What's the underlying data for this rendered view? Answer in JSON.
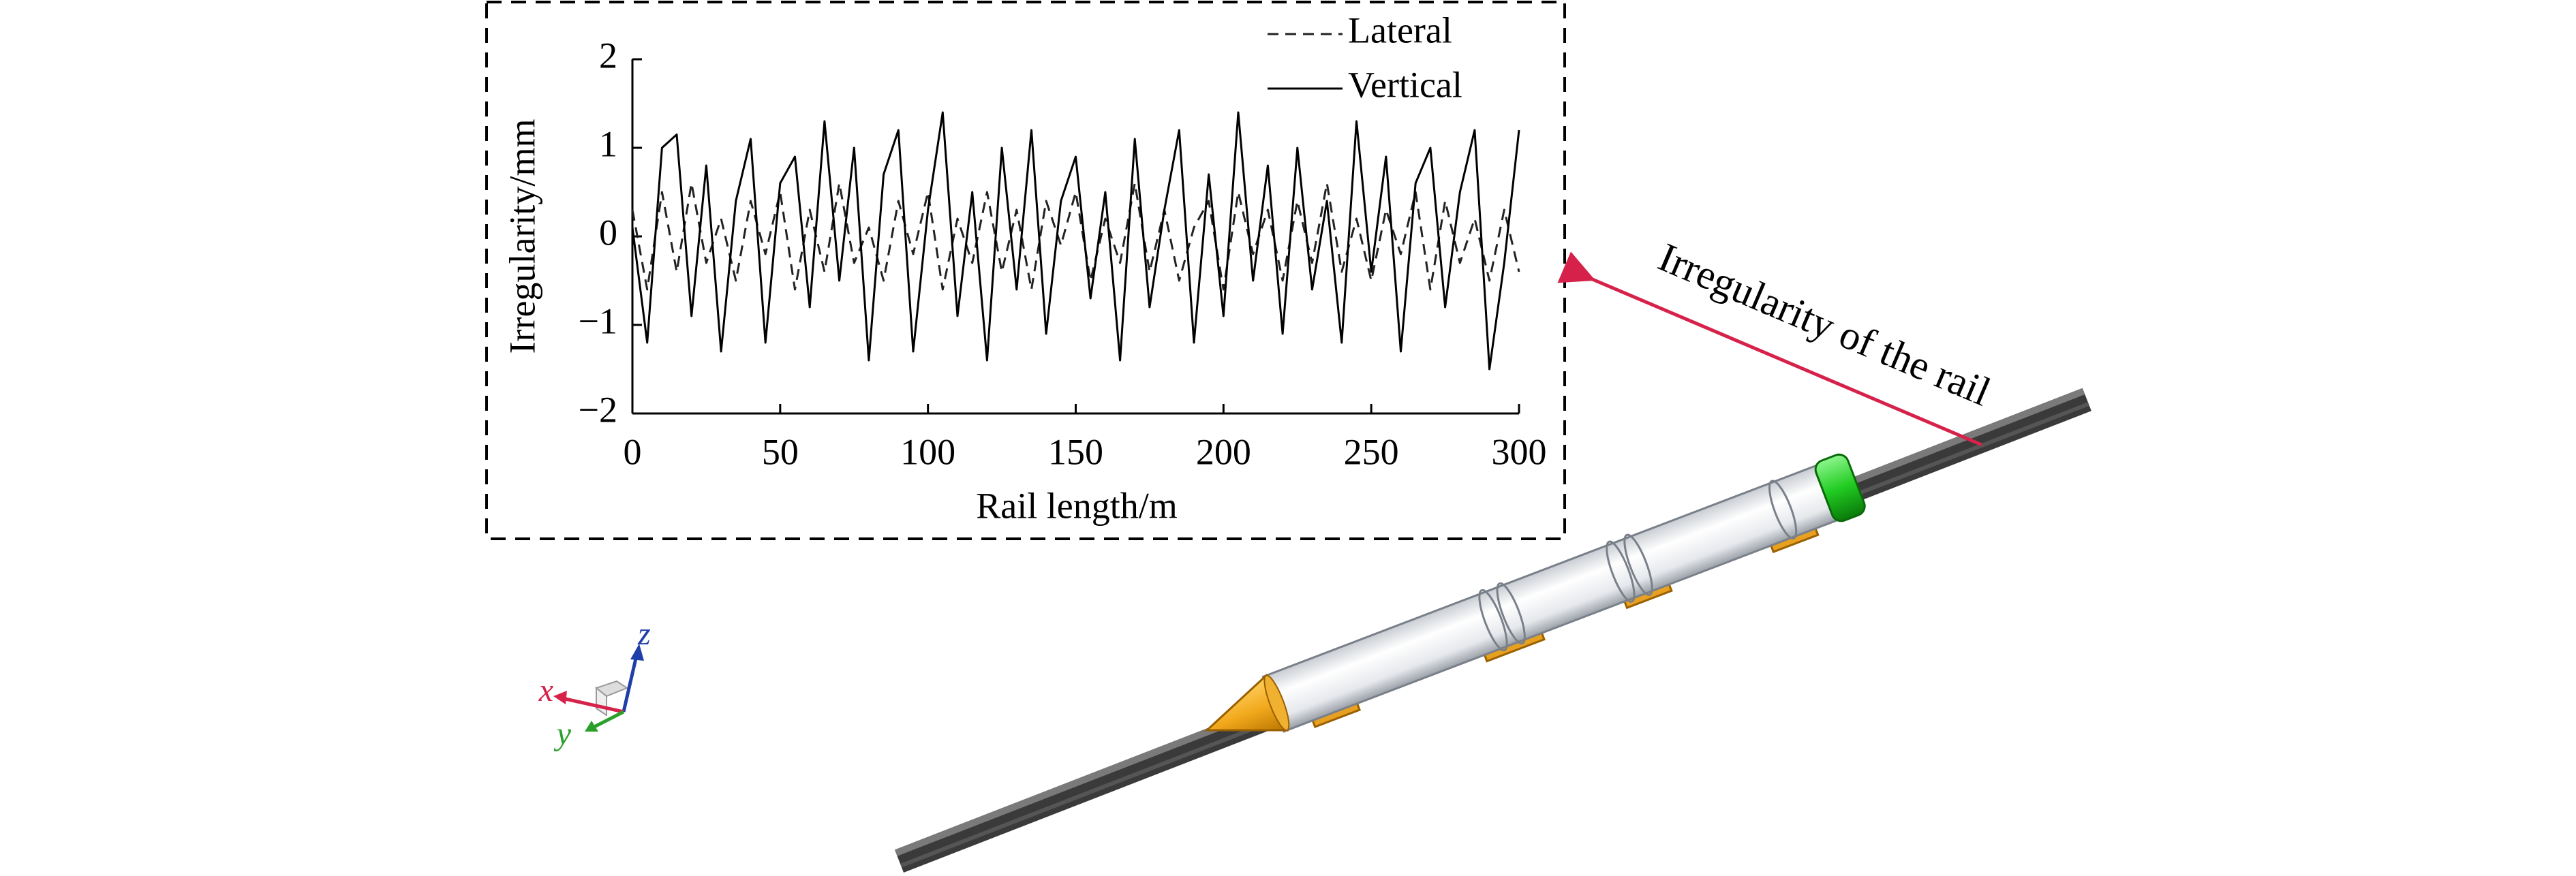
{
  "chart_data": {
    "type": "line",
    "xlabel": "Rail length/m",
    "ylabel": "Irregularity/mm",
    "x": [
      0,
      5,
      10,
      15,
      20,
      25,
      30,
      35,
      40,
      45,
      50,
      55,
      60,
      65,
      70,
      75,
      80,
      85,
      90,
      95,
      100,
      105,
      110,
      115,
      120,
      125,
      130,
      135,
      140,
      145,
      150,
      155,
      160,
      165,
      170,
      175,
      180,
      185,
      190,
      195,
      200,
      205,
      210,
      215,
      220,
      225,
      230,
      235,
      240,
      245,
      250,
      255,
      260,
      265,
      270,
      275,
      280,
      285,
      290,
      295,
      300
    ],
    "series": [
      {
        "name": "Lateral",
        "color": "#222222",
        "line_style": "dashed",
        "values": [
          0.3,
          -0.6,
          0.5,
          -0.4,
          0.6,
          -0.3,
          0.2,
          -0.5,
          0.4,
          -0.2,
          0.5,
          -0.6,
          0.3,
          -0.4,
          0.6,
          -0.3,
          0.1,
          -0.5,
          0.4,
          -0.2,
          0.5,
          -0.6,
          0.2,
          -0.3,
          0.5,
          -0.4,
          0.3,
          -0.6,
          0.4,
          -0.1,
          0.5,
          -0.5,
          0.2,
          -0.3,
          0.6,
          -0.4,
          0.3,
          -0.5,
          0.1,
          0.4,
          -0.6,
          0.5,
          -0.2,
          0.3,
          -0.5,
          0.4,
          -0.3,
          0.6,
          -0.4,
          0.2,
          -0.5,
          0.3,
          -0.2,
          0.5,
          -0.6,
          0.4,
          -0.3,
          0.2,
          -0.5,
          0.3,
          -0.4
        ]
      },
      {
        "name": "Vertical",
        "color": "#000000",
        "line_style": "solid",
        "values": [
          0.1,
          -1.2,
          1.0,
          1.15,
          -0.9,
          0.8,
          -1.3,
          0.4,
          1.1,
          -1.2,
          0.6,
          0.9,
          -0.8,
          1.3,
          -0.5,
          1.0,
          -1.4,
          0.7,
          1.2,
          -1.3,
          0.3,
          1.4,
          -0.9,
          0.5,
          -1.4,
          1.0,
          -0.6,
          1.2,
          -1.1,
          0.4,
          0.9,
          -0.7,
          0.5,
          -1.4,
          1.1,
          -0.8,
          0.3,
          1.2,
          -1.2,
          0.7,
          -0.9,
          1.4,
          -0.5,
          0.8,
          -1.1,
          1.0,
          -0.6,
          0.4,
          -1.2,
          1.3,
          -0.4,
          0.9,
          -1.3,
          0.6,
          1.0,
          -0.8,
          0.5,
          1.2,
          -1.5,
          -0.3,
          1.2
        ]
      }
    ],
    "xlim": [
      0,
      300
    ],
    "xticks": [
      0,
      50,
      100,
      150,
      200,
      250,
      300
    ],
    "ylim": [
      -2,
      2
    ],
    "yticks": [
      {
        "value": -2,
        "label": "−2"
      },
      {
        "value": -1,
        "label": "−1"
      },
      0,
      1,
      2
    ],
    "grid": false,
    "legend": "upper right"
  },
  "annotation": "Irregularity of the rail",
  "axes_triad": {
    "x": "x",
    "y": "y",
    "z": "z"
  }
}
